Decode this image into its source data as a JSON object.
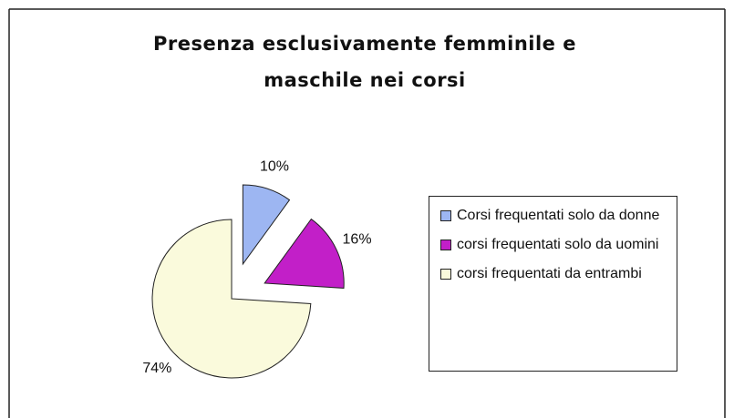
{
  "chart_data": {
    "type": "pie",
    "title": "Presenza esclusivamente femminile e maschile nei corsi",
    "categories": [
      "Corsi frequentati solo da donne",
      "corsi frequentati solo da uomini",
      "corsi frequentati da entrambi"
    ],
    "values": [
      10,
      16,
      74
    ],
    "value_labels": [
      "10%",
      "16%",
      "74%"
    ],
    "colors": [
      "#9db6f2",
      "#c21fc8",
      "#fafadc"
    ],
    "legend": "right"
  }
}
